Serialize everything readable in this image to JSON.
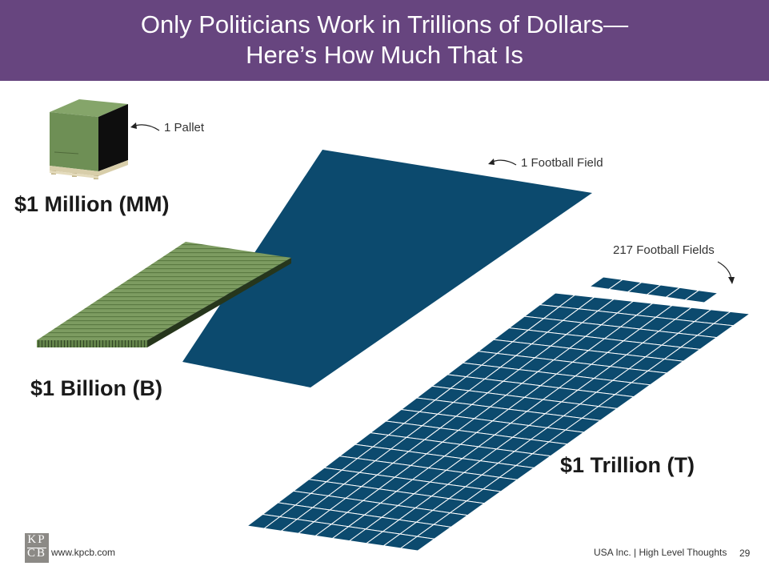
{
  "header": {
    "title_line1": "Only Politicians Work in Trillions of Dollars—",
    "title_line2": "Here’s How Much That Is"
  },
  "labels": {
    "million": "$1 Million (MM)",
    "billion": "$1 Billion (B)",
    "trillion": "$1 Trillion (T)",
    "pallet": "1 Pallet",
    "football_field": "1 Football Field",
    "fields_217": "217 Football Fields"
  },
  "footer": {
    "logo_top": "KP",
    "logo_bottom": "CB",
    "website": "www.kpcb.com",
    "text": "USA Inc. | High Level Thoughts",
    "page": "29"
  },
  "colors": {
    "header": "#67457f",
    "field": "#0c4a6e",
    "money": "#7f9e63"
  }
}
